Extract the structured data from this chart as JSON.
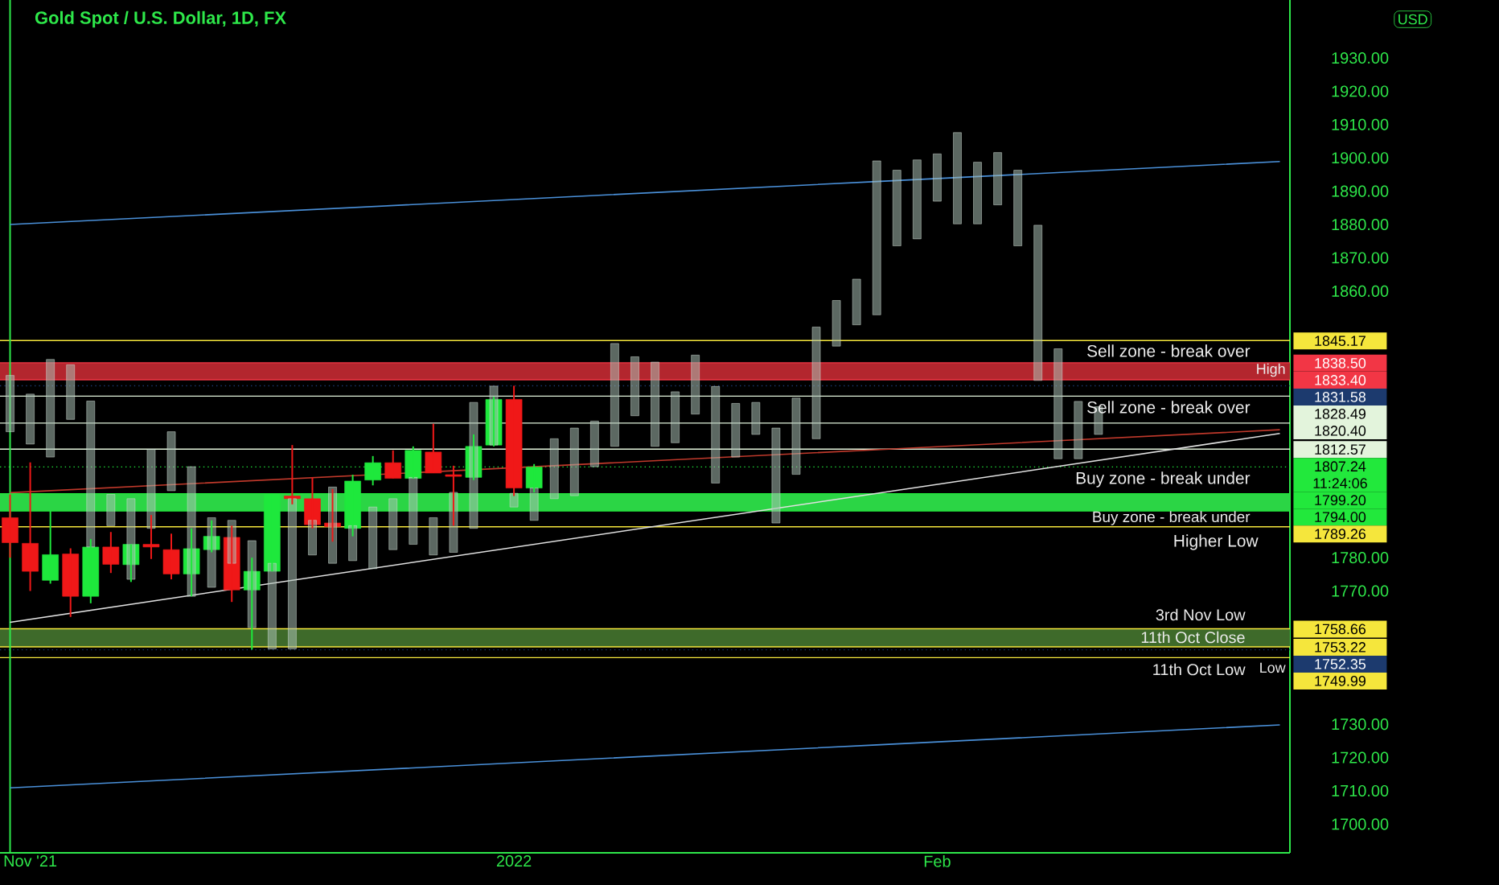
{
  "chart_data": {
    "type": "candlestick",
    "title": "Gold Spot / U.S. Dollar, 1D, FX",
    "categories": [
      null,
      "Nov '21",
      null,
      null,
      null,
      null,
      null,
      null,
      null,
      null,
      null,
      null,
      null,
      null,
      null,
      null,
      null,
      null,
      null,
      null,
      null,
      null,
      null,
      null,
      null,
      "2022",
      null,
      null,
      null,
      null,
      null,
      null,
      null,
      null,
      null,
      null,
      null,
      null,
      null,
      null,
      null,
      null,
      null,
      null,
      null,
      null,
      "Feb",
      null,
      null,
      null,
      null,
      null,
      null,
      null,
      null,
      null,
      null,
      null,
      null,
      null,
      null,
      null,
      null,
      null
    ],
    "ylim": [
      1691.4,
      1947.4
    ],
    "yticks": [
      {
        "value": 1700,
        "label": "1700.00"
      },
      {
        "value": 1710,
        "label": "1710.00"
      },
      {
        "value": 1720,
        "label": "1720.00"
      },
      {
        "value": 1730,
        "label": "1730.00"
      },
      {
        "value": 1770,
        "label": "1770.00"
      },
      {
        "value": 1780,
        "label": "1780.00"
      },
      {
        "value": 1860,
        "label": "1860.00"
      },
      {
        "value": 1870,
        "label": "1870.00"
      },
      {
        "value": 1880,
        "label": "1880.00"
      },
      {
        "value": 1890,
        "label": "1890.00"
      },
      {
        "value": 1900,
        "label": "1900.00"
      },
      {
        "value": 1910,
        "label": "1910.00"
      },
      {
        "value": 1920,
        "label": "1920.00"
      },
      {
        "value": 1930,
        "label": "1930.00"
      }
    ],
    "bands": [
      {
        "axis": "y",
        "from": 1833.4,
        "to": 1838.5,
        "color": "#b3262e"
      },
      {
        "axis": "y",
        "from": 1794.0,
        "to": 1799.2,
        "color": "#2bd545"
      },
      {
        "axis": "y",
        "from": 1753.22,
        "to": 1758.66,
        "color": "#3e6a2a"
      }
    ],
    "ref_lines": [
      {
        "axis": "y",
        "value": 1845.17,
        "label": "1845.17",
        "color": "#f5e63c"
      },
      {
        "axis": "y",
        "value": 1838.5,
        "label": "1838.50",
        "color": "#f23645"
      },
      {
        "axis": "y",
        "value": 1833.4,
        "label": "1833.40",
        "color": "#f23645"
      },
      {
        "axis": "y",
        "value": 1831.58,
        "label": "1831.58",
        "color": "#1c3a6e",
        "line_style": "dotted"
      },
      {
        "axis": "y",
        "value": 1828.49,
        "label": "1828.49",
        "color": "#e3f4dc"
      },
      {
        "axis": "y",
        "value": 1820.4,
        "label": "1820.40",
        "color": "#e3f4dc"
      },
      {
        "axis": "y",
        "value": 1812.57,
        "label": "1812.57",
        "color": "#e3f4dc"
      },
      {
        "axis": "y",
        "value": 1807.24,
        "label": "1807.24 11:24:06",
        "color": "#22e83c",
        "line_style": "dotted"
      },
      {
        "axis": "y",
        "value": 1799.2,
        "label": "1799.20",
        "color": "#22e83c"
      },
      {
        "axis": "y",
        "value": 1794.0,
        "label": "1794.00",
        "color": "#22e83c"
      },
      {
        "axis": "y",
        "value": 1789.26,
        "label": "1789.26",
        "color": "#f5e63c"
      },
      {
        "axis": "y",
        "value": 1758.66,
        "label": "1758.66",
        "color": "#f5e63c"
      },
      {
        "axis": "y",
        "value": 1753.22,
        "label": "1753.22",
        "color": "#f5e63c"
      },
      {
        "axis": "y",
        "value": 1752.35,
        "label": "1752.35",
        "color": "#1c3a6e",
        "line_style": "dotted"
      },
      {
        "axis": "y",
        "value": 1749.99,
        "label": "1749.99",
        "color": "#f5e63c"
      }
    ],
    "annotations": [
      "Sell zone - break over",
      "Sell zone - break over",
      "High",
      "Buy zone - break under",
      "Buy zone - break under",
      "Higher Low",
      "3rd Nov Low",
      "11th Oct Close",
      "11th Oct Low",
      "Low",
      "USD"
    ],
    "series": [
      {
        "type": "bar",
        "color": "#a8bdb2",
        "base": [
          1817.8,
          1814.1,
          1810.2,
          1821.5,
          1783.2,
          1789.6,
          1773.5,
          1788.8,
          1800.1,
          1768.4,
          1771.1,
          1778.3,
          1759.0,
          1752.6,
          1752.6,
          1780.8,
          1778.3,
          1779.1,
          1776.7,
          1782.4,
          1784.0,
          1780.8,
          1781.6,
          1788.8,
          1813.8,
          1795.2,
          1791.2,
          1797.7,
          1798.6,
          1807.3,
          1813.4,
          1822.6,
          1813.4,
          1814.5,
          1823.1,
          1802.4,
          1810.2,
          1817.0,
          1790.4,
          1805.0,
          1815.7,
          1843.5,
          1849.9,
          1852.9,
          1873.6,
          1875.7,
          1887.0,
          1880.2,
          1880.2,
          1885.9,
          1873.6,
          1833.2,
          1809.7,
          1809.7,
          1817.0,
          null,
          null,
          null,
          null,
          null,
          null,
          null,
          null,
          null
        ],
        "values": [
          16.9,
          15.0,
          29.3,
          16.4,
          43.8,
          9.4,
          24.2,
          23.7,
          17.7,
          38.9,
          20.9,
          12.9,
          26.1,
          25.7,
          45.1,
          10.4,
          22.9,
          10.5,
          18.5,
          15.3,
          20.1,
          11.2,
          18.0,
          37.8,
          17.7,
          4.1,
          9.7,
          18.0,
          20.3,
          13.7,
          30.9,
          17.7,
          25.3,
          15.3,
          17.7,
          29.0,
          16.1,
          9.6,
          28.5,
          22.9,
          33.5,
          13.7,
          13.7,
          46.2,
          22.7,
          23.7,
          14.2,
          27.4,
          18.5,
          15.7,
          22.7,
          46.6,
          33.0,
          17.2,
          8.3,
          null,
          null,
          null,
          null,
          null,
          null,
          null,
          null,
          null
        ]
      },
      {
        "type": "line",
        "color": "#4a90d9",
        "values": [
          1880.0,
          1880.3,
          1880.6,
          1880.9,
          1881.2,
          1881.5,
          1881.8,
          1882.1,
          1882.4,
          1882.7,
          1883.0,
          1883.3,
          1883.6,
          1883.9,
          1884.2,
          1884.5,
          1884.8,
          1885.1,
          1885.4,
          1885.7,
          1886.0,
          1886.3,
          1886.6,
          1886.9,
          1887.2,
          1887.5,
          1887.8,
          1888.1,
          1888.4,
          1888.7,
          1889.0,
          1889.3,
          1889.6,
          1889.9,
          1890.2,
          1890.5,
          1890.8,
          1891.1,
          1891.4,
          1891.7,
          1892.0,
          1892.3,
          1892.6,
          1892.9,
          1893.2,
          1893.5,
          1893.8,
          1894.1,
          1894.4,
          1894.7,
          1895.0,
          1895.3,
          1895.6,
          1895.9,
          1896.2,
          1896.5,
          1896.8,
          1897.1,
          1897.4,
          1897.7,
          1898.0,
          1898.3,
          1898.6,
          1898.9
        ]
      },
      {
        "type": "line",
        "color": "#c0392b",
        "values": [
          1799.5,
          1799.8,
          1800.1,
          1800.4,
          1800.7,
          1801.0,
          1801.3,
          1801.6,
          1801.9,
          1802.2,
          1802.5,
          1802.8,
          1803.1,
          1803.4,
          1803.7,
          1804.0,
          1804.3,
          1804.6,
          null,
          1805.2,
          null,
          null,
          1806.1,
          null,
          1806.7,
          null,
          1807.3,
          1807.6,
          1807.9,
          1808.2,
          1808.5,
          1808.8,
          1809.1,
          1809.4,
          1809.7,
          1810.0,
          1810.3,
          1810.6,
          1810.9,
          1811.2,
          1811.5,
          1811.8,
          1812.1,
          1812.4,
          1812.7,
          1813.0,
          1813.3,
          1813.6,
          1813.9,
          1814.2,
          1814.5,
          1814.8,
          1815.1,
          1815.4,
          1815.7,
          1816.0,
          1816.3,
          1816.6,
          1816.9,
          1817.2,
          1817.5,
          1817.8,
          1818.1,
          1818.4
        ]
      },
      {
        "type": "line",
        "color": "#4a90d9",
        "values": [
          1710.9,
          1711.2,
          1711.5,
          1711.8,
          1712.1,
          1712.4,
          1712.7,
          1713.0,
          1713.3,
          1713.6,
          1713.9,
          1714.2,
          1714.5,
          1714.8,
          1715.1,
          1715.4,
          1715.7,
          1716.0,
          1716.3,
          1716.6,
          1716.9,
          1717.2,
          1717.5,
          1717.8,
          1718.1,
          1718.4,
          1718.7,
          1719.0,
          1719.3,
          1719.6,
          1719.9,
          1720.2,
          1720.5,
          1720.8,
          1721.1,
          1721.4,
          1721.7,
          1722.0,
          1722.3,
          1722.6,
          1722.9,
          1723.2,
          1723.5,
          1723.8,
          1724.1,
          1724.4,
          1724.7,
          1725.0,
          1725.3,
          1725.6,
          1725.9,
          1726.2,
          1726.5,
          1726.8,
          1727.1,
          1727.4,
          1727.7,
          1728.0,
          1728.3,
          1728.6,
          1728.9,
          1729.2,
          1729.5,
          1729.8
        ]
      },
      {
        "type": "line",
        "color": "#e0e0e0",
        "values": [
          1760.6,
          1761.5,
          1762.4,
          1763.3,
          1764.2,
          1765.1,
          1766.0,
          1766.9,
          1767.8,
          1768.7,
          1769.6,
          null,
          null,
          1772.3,
          1773.2,
          1774.1,
          1775.0,
          1775.9,
          1776.8,
          1777.7,
          1778.6,
          1779.5,
          1780.4,
          1781.3,
          1782.2,
          1783.1,
          1784.0,
          1784.9,
          1785.8,
          1786.7,
          1787.6,
          1788.5,
          1789.4,
          1790.3,
          1791.2,
          1792.1,
          1793.0,
          1793.9,
          1794.8,
          1795.7,
          1796.6,
          1797.5,
          1798.4,
          1799.3,
          1800.2,
          1801.1,
          1802.0,
          1802.9,
          1803.8,
          1804.7,
          1805.6,
          1806.5,
          1807.4,
          1808.3,
          1809.2,
          1810.1,
          1811.0,
          1811.9,
          1812.8,
          1813.7,
          1814.6,
          1815.5,
          1816.4,
          1817.3
        ]
      },
      {
        "ohlc": [
          [
            1792.0,
            1799.0,
            1780.0,
            1784.5
          ],
          [
            1784.3,
            1808.6,
            1770.0,
            1775.9
          ],
          [
            1773.2,
            1794.1,
            1772.2,
            1780.9
          ],
          [
            1781.1,
            1782.8,
            1762.2,
            1768.4
          ],
          [
            1768.4,
            1785.6,
            1766.3,
            1783.2
          ],
          [
            1783.2,
            1787.7,
            1775.4,
            1778.0
          ],
          [
            1777.9,
            1784.0,
            1772.7,
            1784.0
          ],
          [
            1784.0,
            1792.8,
            1779.6,
            1783.2
          ],
          [
            1782.4,
            1787.2,
            1773.5,
            1775.1
          ],
          [
            1775.1,
            1788.8,
            1768.4,
            1782.7
          ],
          [
            1782.4,
            1791.2,
            1781.6,
            1786.4
          ],
          [
            1786.1,
            1789.6,
            1766.7,
            1770.3
          ],
          [
            1770.3,
            1780.0,
            1752.4,
            1775.9
          ],
          [
            1775.9,
            1799.0,
            1775.9,
            1799.0
          ],
          [
            1798.5,
            1813.8,
            1796.0,
            1797.7
          ],
          [
            1797.7,
            1804.1,
            1788.8,
            1789.9
          ],
          [
            1790.4,
            1800.6,
            1784.8,
            1789.3
          ],
          [
            1788.8,
            1804.9,
            1786.4,
            1803.0
          ],
          [
            1803.3,
            1810.5,
            1801.7,
            1808.5
          ],
          [
            1808.5,
            1812.2,
            1803.8,
            1803.8
          ],
          [
            1803.8,
            1813.4,
            1803.8,
            1812.2
          ],
          [
            1811.7,
            1820.2,
            1805.4,
            1805.4
          ],
          [
            1804.9,
            1807.6,
            1789.6,
            1804.4
          ],
          [
            1804.1,
            1817.0,
            1803.3,
            1813.4
          ],
          [
            1813.8,
            1828.3,
            1813.4,
            1827.5
          ],
          [
            1827.5,
            1831.6,
            1798.5,
            1800.9
          ],
          [
            1800.9,
            1808.1,
            1799.6,
            1807.2
          ],
          null,
          null,
          null,
          null,
          null,
          null,
          null,
          null,
          null,
          null,
          null,
          null,
          null,
          null,
          null,
          null,
          null,
          null,
          null,
          null,
          null,
          null,
          null,
          null,
          null,
          null,
          null,
          null,
          null,
          null,
          null,
          null,
          null,
          null,
          null,
          null,
          null
        ],
        "colors": [
          "#f01818",
          "#f01818",
          "#1ee83c",
          "#f01818",
          "#1ee83c",
          "#f01818",
          "#1ee83c",
          "#f01818",
          "#f01818",
          "#1ee83c",
          "#1ee83c",
          "#f01818",
          "#1ee83c",
          "#1ee83c",
          "#f01818",
          "#f01818",
          "#f01818",
          "#1ee83c",
          "#1ee83c",
          "#f01818",
          "#1ee83c",
          "#f01818",
          "#f01818",
          "#1ee83c",
          "#1ee83c",
          "#f01818",
          "#1ee83c",
          null,
          null,
          null,
          null,
          null,
          null,
          null,
          null,
          null,
          null,
          null,
          null,
          null,
          null,
          null,
          null,
          null,
          null,
          null,
          null,
          null,
          null,
          null,
          null,
          null,
          null,
          null,
          null,
          null,
          null,
          null,
          null,
          null,
          null,
          null,
          null,
          null
        ]
      }
    ]
  }
}
